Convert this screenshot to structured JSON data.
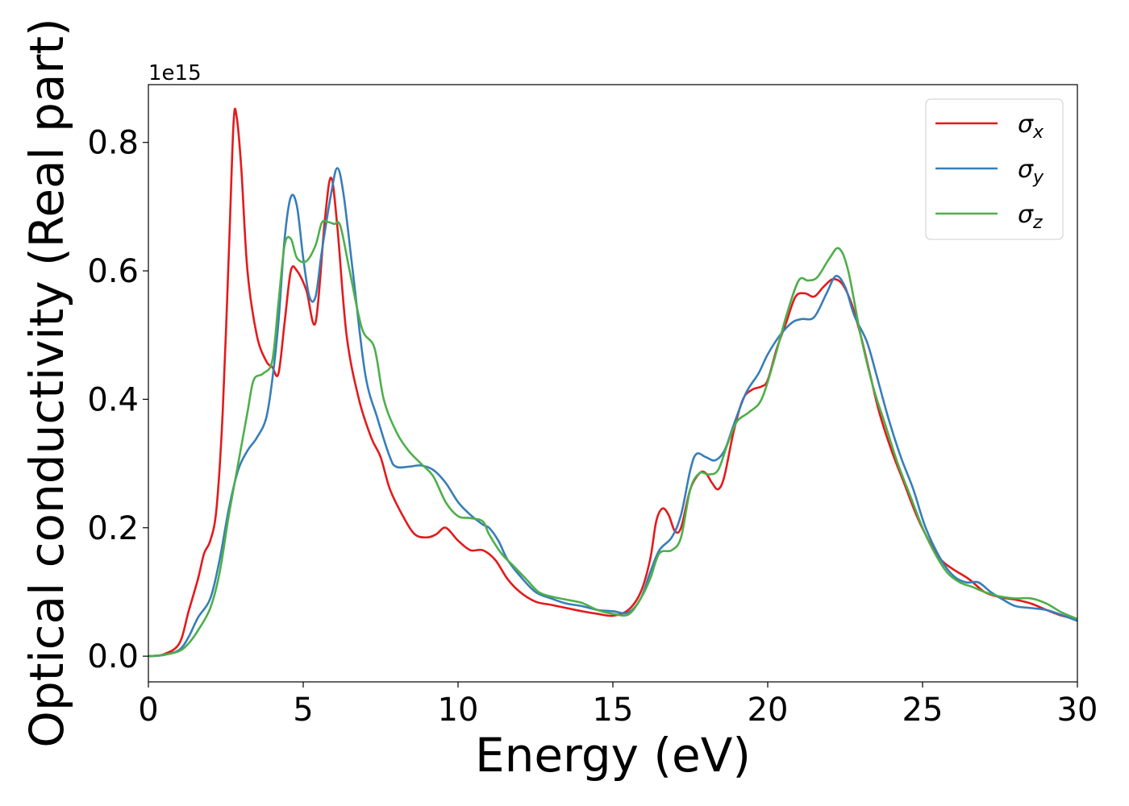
{
  "chart_data": {
    "type": "line",
    "title": "",
    "xlabel": "Energy (eV)",
    "ylabel": "Optical conductivity (Real part)",
    "y_offset_label": "1e15",
    "xlim": [
      0,
      30
    ],
    "ylim": [
      -0.04,
      0.89
    ],
    "x_ticks": [
      0,
      5,
      10,
      15,
      20,
      25,
      30
    ],
    "x_tick_labels": [
      "0",
      "5",
      "10",
      "15",
      "20",
      "25",
      "30"
    ],
    "y_ticks": [
      0.0,
      0.2,
      0.4,
      0.6,
      0.8
    ],
    "y_tick_labels": [
      "0.0",
      "0.2",
      "0.4",
      "0.6",
      "0.8"
    ],
    "grid": false,
    "legend_position": "top-right",
    "series": [
      {
        "name": "σx",
        "legend_base": "σ",
        "legend_sub": "x",
        "color": "#e41a1c",
        "points": [
          [
            0,
            0
          ],
          [
            0.5,
            0.003
          ],
          [
            1.0,
            0.02
          ],
          [
            1.3,
            0.07
          ],
          [
            1.6,
            0.12
          ],
          [
            1.8,
            0.16
          ],
          [
            2.0,
            0.18
          ],
          [
            2.2,
            0.23
          ],
          [
            2.4,
            0.38
          ],
          [
            2.6,
            0.63
          ],
          [
            2.75,
            0.83
          ],
          [
            2.85,
            0.84
          ],
          [
            3.0,
            0.76
          ],
          [
            3.2,
            0.6
          ],
          [
            3.5,
            0.5
          ],
          [
            3.8,
            0.46
          ],
          [
            4.0,
            0.45
          ],
          [
            4.2,
            0.44
          ],
          [
            4.4,
            0.52
          ],
          [
            4.6,
            0.6
          ],
          [
            4.8,
            0.6
          ],
          [
            5.1,
            0.57
          ],
          [
            5.4,
            0.52
          ],
          [
            5.7,
            0.68
          ],
          [
            5.9,
            0.745
          ],
          [
            6.1,
            0.67
          ],
          [
            6.4,
            0.5
          ],
          [
            6.8,
            0.4
          ],
          [
            7.2,
            0.34
          ],
          [
            7.5,
            0.31
          ],
          [
            7.8,
            0.26
          ],
          [
            8.2,
            0.22
          ],
          [
            8.6,
            0.19
          ],
          [
            9.0,
            0.185
          ],
          [
            9.3,
            0.19
          ],
          [
            9.6,
            0.2
          ],
          [
            10.0,
            0.18
          ],
          [
            10.4,
            0.165
          ],
          [
            10.8,
            0.165
          ],
          [
            11.2,
            0.15
          ],
          [
            11.6,
            0.12
          ],
          [
            12.0,
            0.1
          ],
          [
            12.5,
            0.085
          ],
          [
            13.0,
            0.08
          ],
          [
            13.5,
            0.075
          ],
          [
            14.0,
            0.07
          ],
          [
            14.5,
            0.066
          ],
          [
            15.0,
            0.063
          ],
          [
            15.5,
            0.072
          ],
          [
            15.9,
            0.1
          ],
          [
            16.2,
            0.15
          ],
          [
            16.4,
            0.21
          ],
          [
            16.6,
            0.23
          ],
          [
            16.8,
            0.22
          ],
          [
            17.0,
            0.195
          ],
          [
            17.2,
            0.2
          ],
          [
            17.5,
            0.26
          ],
          [
            17.8,
            0.285
          ],
          [
            18.0,
            0.285
          ],
          [
            18.2,
            0.27
          ],
          [
            18.4,
            0.26
          ],
          [
            18.6,
            0.28
          ],
          [
            18.9,
            0.35
          ],
          [
            19.2,
            0.4
          ],
          [
            19.5,
            0.415
          ],
          [
            19.8,
            0.42
          ],
          [
            20.0,
            0.43
          ],
          [
            20.3,
            0.48
          ],
          [
            20.6,
            0.52
          ],
          [
            20.9,
            0.56
          ],
          [
            21.2,
            0.565
          ],
          [
            21.5,
            0.56
          ],
          [
            21.8,
            0.575
          ],
          [
            22.1,
            0.587
          ],
          [
            22.4,
            0.58
          ],
          [
            22.7,
            0.55
          ],
          [
            23.0,
            0.5
          ],
          [
            23.3,
            0.44
          ],
          [
            23.6,
            0.38
          ],
          [
            24.0,
            0.32
          ],
          [
            24.4,
            0.27
          ],
          [
            24.8,
            0.22
          ],
          [
            25.2,
            0.18
          ],
          [
            25.6,
            0.15
          ],
          [
            26.0,
            0.135
          ],
          [
            26.5,
            0.12
          ],
          [
            27.0,
            0.1
          ],
          [
            27.5,
            0.092
          ],
          [
            28.0,
            0.088
          ],
          [
            28.5,
            0.082
          ],
          [
            29.0,
            0.072
          ],
          [
            29.5,
            0.063
          ],
          [
            30,
            0.057
          ]
        ]
      },
      {
        "name": "σy",
        "legend_base": "σ",
        "legend_sub": "y",
        "color": "#377eb8",
        "points": [
          [
            0,
            0
          ],
          [
            0.5,
            0.002
          ],
          [
            1.0,
            0.01
          ],
          [
            1.3,
            0.03
          ],
          [
            1.6,
            0.06
          ],
          [
            2.0,
            0.09
          ],
          [
            2.3,
            0.15
          ],
          [
            2.6,
            0.23
          ],
          [
            2.9,
            0.29
          ],
          [
            3.2,
            0.32
          ],
          [
            3.5,
            0.34
          ],
          [
            3.8,
            0.37
          ],
          [
            4.0,
            0.43
          ],
          [
            4.2,
            0.52
          ],
          [
            4.4,
            0.65
          ],
          [
            4.6,
            0.715
          ],
          [
            4.8,
            0.7
          ],
          [
            5.0,
            0.62
          ],
          [
            5.2,
            0.56
          ],
          [
            5.4,
            0.56
          ],
          [
            5.6,
            0.63
          ],
          [
            5.9,
            0.72
          ],
          [
            6.1,
            0.76
          ],
          [
            6.3,
            0.72
          ],
          [
            6.6,
            0.6
          ],
          [
            7.0,
            0.44
          ],
          [
            7.4,
            0.37
          ],
          [
            7.8,
            0.31
          ],
          [
            8.0,
            0.295
          ],
          [
            8.4,
            0.295
          ],
          [
            8.8,
            0.297
          ],
          [
            9.2,
            0.29
          ],
          [
            9.6,
            0.27
          ],
          [
            10.0,
            0.24
          ],
          [
            10.4,
            0.22
          ],
          [
            10.8,
            0.205
          ],
          [
            11.0,
            0.2
          ],
          [
            11.3,
            0.18
          ],
          [
            11.6,
            0.15
          ],
          [
            12.0,
            0.125
          ],
          [
            12.5,
            0.1
          ],
          [
            13.0,
            0.09
          ],
          [
            13.5,
            0.082
          ],
          [
            14.0,
            0.078
          ],
          [
            14.5,
            0.072
          ],
          [
            15.0,
            0.07
          ],
          [
            15.5,
            0.068
          ],
          [
            15.9,
            0.09
          ],
          [
            16.2,
            0.13
          ],
          [
            16.5,
            0.165
          ],
          [
            16.9,
            0.185
          ],
          [
            17.2,
            0.22
          ],
          [
            17.5,
            0.29
          ],
          [
            17.7,
            0.315
          ],
          [
            18.0,
            0.31
          ],
          [
            18.3,
            0.305
          ],
          [
            18.6,
            0.32
          ],
          [
            18.9,
            0.36
          ],
          [
            19.3,
            0.41
          ],
          [
            19.7,
            0.44
          ],
          [
            20.0,
            0.47
          ],
          [
            20.4,
            0.5
          ],
          [
            20.8,
            0.52
          ],
          [
            21.1,
            0.525
          ],
          [
            21.5,
            0.528
          ],
          [
            21.9,
            0.565
          ],
          [
            22.2,
            0.592
          ],
          [
            22.5,
            0.575
          ],
          [
            22.8,
            0.53
          ],
          [
            23.2,
            0.49
          ],
          [
            23.5,
            0.44
          ],
          [
            23.9,
            0.37
          ],
          [
            24.3,
            0.31
          ],
          [
            24.7,
            0.26
          ],
          [
            25.1,
            0.2
          ],
          [
            25.6,
            0.15
          ],
          [
            26.0,
            0.125
          ],
          [
            26.4,
            0.115
          ],
          [
            26.8,
            0.115
          ],
          [
            27.2,
            0.1
          ],
          [
            27.6,
            0.088
          ],
          [
            28.0,
            0.078
          ],
          [
            28.5,
            0.075
          ],
          [
            29.0,
            0.072
          ],
          [
            29.5,
            0.064
          ],
          [
            30,
            0.055
          ]
        ]
      },
      {
        "name": "σz",
        "legend_base": "σ",
        "legend_sub": "z",
        "color": "#4daf4a",
        "points": [
          [
            0,
            0
          ],
          [
            0.5,
            0.002
          ],
          [
            1.0,
            0.008
          ],
          [
            1.3,
            0.02
          ],
          [
            1.6,
            0.04
          ],
          [
            2.0,
            0.075
          ],
          [
            2.3,
            0.13
          ],
          [
            2.6,
            0.22
          ],
          [
            2.9,
            0.3
          ],
          [
            3.2,
            0.38
          ],
          [
            3.4,
            0.43
          ],
          [
            3.7,
            0.44
          ],
          [
            4.0,
            0.46
          ],
          [
            4.2,
            0.55
          ],
          [
            4.4,
            0.64
          ],
          [
            4.6,
            0.65
          ],
          [
            4.8,
            0.62
          ],
          [
            5.1,
            0.615
          ],
          [
            5.4,
            0.64
          ],
          [
            5.6,
            0.675
          ],
          [
            5.8,
            0.676
          ],
          [
            6.0,
            0.673
          ],
          [
            6.2,
            0.67
          ],
          [
            6.5,
            0.6
          ],
          [
            6.9,
            0.51
          ],
          [
            7.3,
            0.48
          ],
          [
            7.6,
            0.4
          ],
          [
            8.0,
            0.35
          ],
          [
            8.4,
            0.32
          ],
          [
            8.8,
            0.3
          ],
          [
            9.2,
            0.28
          ],
          [
            9.6,
            0.24
          ],
          [
            10.0,
            0.218
          ],
          [
            10.4,
            0.215
          ],
          [
            10.8,
            0.21
          ],
          [
            11.0,
            0.19
          ],
          [
            11.4,
            0.16
          ],
          [
            11.8,
            0.14
          ],
          [
            12.2,
            0.12
          ],
          [
            12.6,
            0.1
          ],
          [
            13.0,
            0.093
          ],
          [
            13.5,
            0.088
          ],
          [
            14.0,
            0.083
          ],
          [
            14.5,
            0.072
          ],
          [
            15.0,
            0.066
          ],
          [
            15.5,
            0.065
          ],
          [
            15.9,
            0.09
          ],
          [
            16.2,
            0.12
          ],
          [
            16.5,
            0.16
          ],
          [
            16.9,
            0.165
          ],
          [
            17.2,
            0.185
          ],
          [
            17.5,
            0.26
          ],
          [
            17.8,
            0.285
          ],
          [
            18.1,
            0.283
          ],
          [
            18.4,
            0.29
          ],
          [
            18.7,
            0.33
          ],
          [
            19.0,
            0.365
          ],
          [
            19.4,
            0.38
          ],
          [
            19.8,
            0.4
          ],
          [
            20.2,
            0.46
          ],
          [
            20.6,
            0.53
          ],
          [
            21.0,
            0.585
          ],
          [
            21.3,
            0.585
          ],
          [
            21.6,
            0.59
          ],
          [
            22.0,
            0.62
          ],
          [
            22.3,
            0.635
          ],
          [
            22.6,
            0.6
          ],
          [
            23.0,
            0.5
          ],
          [
            23.4,
            0.42
          ],
          [
            23.8,
            0.36
          ],
          [
            24.2,
            0.3
          ],
          [
            24.6,
            0.25
          ],
          [
            25.0,
            0.2
          ],
          [
            25.4,
            0.16
          ],
          [
            25.8,
            0.13
          ],
          [
            26.2,
            0.115
          ],
          [
            26.6,
            0.108
          ],
          [
            27.0,
            0.1
          ],
          [
            27.5,
            0.093
          ],
          [
            28.0,
            0.09
          ],
          [
            28.5,
            0.09
          ],
          [
            29.0,
            0.082
          ],
          [
            29.5,
            0.068
          ],
          [
            30,
            0.058
          ]
        ]
      }
    ]
  }
}
